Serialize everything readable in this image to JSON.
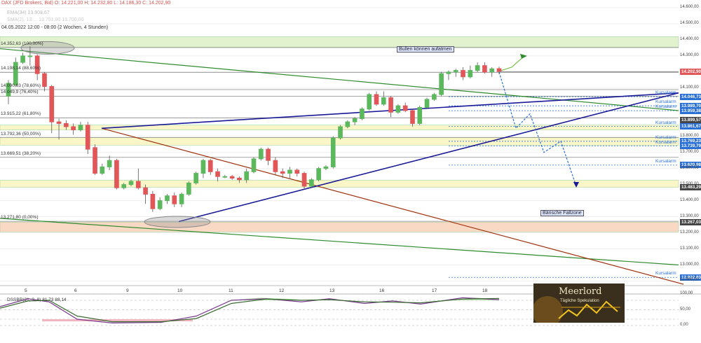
{
  "header": {
    "symbol_line": "DAX (JFD Brokers, Bid)  O: 14.221,00  H: 14.232,80  L: 14.186,30  C: 14.202,90",
    "ema_line": "EMA(34)  13.908,67",
    "faded_line": "SMA(2), 13.... 13.751,00  13.700,00",
    "date_line": "04.05.2022 12:00 - 08:00  (2 Wochen, 4 Stunden)",
    "logo_text": "Meerlord",
    "logo_sub": "Tägliche Spekulation"
  },
  "colors": {
    "up": "#5cb85c",
    "down": "#e15759",
    "blue_line": "#1a1a99",
    "green_line": "#2e8b2e",
    "brown_line": "#a0300c",
    "alarm": "#2a6fd6",
    "price_tag": "#e15759",
    "level_tag": "#444444",
    "fib_zone": "#fbf6c8",
    "top_zone": "#e2f2cf",
    "bottom_zone": "#f9d9c4"
  },
  "chart_data": {
    "type": "candlestick",
    "y_axis_ticks": [
      "14.600,00",
      "14.500,00",
      "14.400,00",
      "14.300,00",
      "14.200,00",
      "14.100,00",
      "13.800,00",
      "13.700,00",
      "13.600,00",
      "13.500,00",
      "13.400,00",
      "13.300,00",
      "13.200,00",
      "13.100,00",
      "13.000,00",
      "12.900,00"
    ],
    "x_axis_ticks": [
      "5",
      "6",
      "9",
      "10",
      "11",
      "12",
      "13",
      "16",
      "17",
      "18"
    ],
    "fib_levels": [
      {
        "price": 14352.63,
        "label": "14.352,63 (100,00%)"
      },
      {
        "price": 14198.14,
        "label": "14.198,14 (88,60%)"
      },
      {
        "price": 14090.63,
        "label": "14.090,63 (78,60%)"
      },
      {
        "price": 14049.9,
        "label": "14.049,9 (76,40%)"
      },
      {
        "price": 13915.22,
        "label": "13.915,22 (61,80%)"
      },
      {
        "price": 13792.36,
        "label": "13.792,36 (50,00%)"
      },
      {
        "price": 13669.51,
        "label": "13.669,51 (38,20%)"
      },
      {
        "price": 13271.8,
        "label": "13.271,80 (0,00%)"
      }
    ],
    "price_tags": [
      {
        "price": 14202.9,
        "label": "14.202,90",
        "kind": "current"
      },
      {
        "price": 13899.57,
        "label": "13.899,57",
        "kind": "level"
      },
      {
        "price": 13483.29,
        "label": "13.483,29",
        "kind": "level"
      },
      {
        "price": 13267.03,
        "label": "13.267,03",
        "kind": "level"
      }
    ],
    "alarms": [
      {
        "price": 14046.73,
        "label": "14.046,73"
      },
      {
        "price": 13989.7,
        "label": "13.989,70"
      },
      {
        "price": 13959.38,
        "label": "13.959,38"
      },
      {
        "price": 13861.67,
        "label": "13.861,67"
      },
      {
        "price": 13769.23,
        "label": "13.769,23"
      },
      {
        "price": 13739.79,
        "label": "13.739,79"
      },
      {
        "price": 13620.98,
        "label": "13.620,98"
      },
      {
        "price": 12922.83,
        "label": "12.922,83"
      }
    ],
    "alarm_text": "Kursalarm",
    "zones": [
      {
        "from": 14352,
        "to": 14420,
        "type": "top"
      },
      {
        "from": 13840,
        "to": 13870,
        "type": "fib"
      },
      {
        "from": 13745,
        "to": 13792,
        "type": "fib"
      },
      {
        "from": 13483,
        "to": 13527,
        "type": "fib"
      },
      {
        "from": 13205,
        "to": 13267,
        "type": "bottom"
      }
    ],
    "annotations": {
      "bull": "Bullen können aufatmen",
      "bear": "Bärische Fallzone"
    },
    "candles": [
      [
        14050,
        14130,
        14000,
        14150
      ],
      [
        14120,
        14260,
        14110,
        14290
      ],
      [
        14260,
        14300,
        14250,
        14320
      ],
      [
        14300,
        14300,
        14240,
        14360
      ],
      [
        14300,
        14190,
        14150,
        14310
      ],
      [
        14190,
        14110,
        14080,
        14200
      ],
      [
        14110,
        13890,
        13820,
        14120
      ],
      [
        13890,
        13880,
        13780,
        13910
      ],
      [
        13880,
        13860,
        13840,
        13900
      ],
      [
        13860,
        13840,
        13810,
        13880
      ],
      [
        13840,
        13870,
        13830,
        13890
      ],
      [
        13870,
        13720,
        13690,
        13890
      ],
      [
        13730,
        13570,
        13560,
        13750
      ],
      [
        13570,
        13610,
        13560,
        13630
      ],
      [
        13610,
        13650,
        13590,
        13680
      ],
      [
        13650,
        13480,
        13470,
        13660
      ],
      [
        13480,
        13500,
        13470,
        13510
      ],
      [
        13500,
        13520,
        13490,
        13530
      ],
      [
        13520,
        13480,
        13470,
        13600
      ],
      [
        13480,
        13440,
        13380,
        13500
      ],
      [
        13440,
        13350,
        13330,
        13460
      ],
      [
        13350,
        13400,
        13340,
        13420
      ],
      [
        13400,
        13430,
        13380,
        13440
      ],
      [
        13430,
        13380,
        13360,
        13450
      ],
      [
        13380,
        13440,
        13360,
        13450
      ],
      [
        13440,
        13510,
        13430,
        13520
      ],
      [
        13510,
        13570,
        13500,
        13580
      ],
      [
        13570,
        13650,
        13540,
        13660
      ],
      [
        13650,
        13580,
        13560,
        13660
      ],
      [
        13580,
        13550,
        13520,
        13600
      ],
      [
        13550,
        13550,
        13540,
        13560
      ],
      [
        13550,
        13540,
        13530,
        13560
      ],
      [
        13540,
        13530,
        13510,
        13550
      ],
      [
        13530,
        13580,
        13510,
        13600
      ],
      [
        13580,
        13660,
        13570,
        13670
      ],
      [
        13660,
        13720,
        13650,
        13730
      ],
      [
        13720,
        13650,
        13620,
        13730
      ],
      [
        13650,
        13580,
        13560,
        13670
      ],
      [
        13580,
        13570,
        13540,
        13600
      ],
      [
        13570,
        13590,
        13540,
        13610
      ],
      [
        13590,
        13570,
        13550,
        13600
      ],
      [
        13570,
        13490,
        13470,
        13580
      ],
      [
        13490,
        13530,
        13480,
        13540
      ],
      [
        13530,
        13600,
        13520,
        13610
      ],
      [
        13600,
        13610,
        13590,
        13620
      ],
      [
        13610,
        13790,
        13600,
        13800
      ],
      [
        13790,
        13860,
        13780,
        13870
      ],
      [
        13860,
        13890,
        13850,
        13900
      ],
      [
        13890,
        13910,
        13870,
        13920
      ],
      [
        13910,
        13970,
        13900,
        13980
      ],
      [
        13970,
        14060,
        13960,
        14070
      ],
      [
        14060,
        14000,
        13990,
        14080
      ],
      [
        14000,
        14040,
        13990,
        14080
      ],
      [
        14040,
        13950,
        13920,
        14050
      ],
      [
        13950,
        13990,
        13940,
        14000
      ],
      [
        13990,
        13960,
        13950,
        14010
      ],
      [
        13960,
        13880,
        13860,
        13970
      ],
      [
        13880,
        13980,
        13870,
        13990
      ],
      [
        13980,
        14030,
        13970,
        14040
      ],
      [
        14030,
        14060,
        14020,
        14070
      ],
      [
        14060,
        14190,
        14050,
        14200
      ],
      [
        14190,
        14200,
        14150,
        14210
      ],
      [
        14200,
        14210,
        14170,
        14220
      ],
      [
        14210,
        14170,
        14150,
        14230
      ],
      [
        14170,
        14210,
        14160,
        14240
      ],
      [
        14210,
        14240,
        14200,
        14260
      ],
      [
        14240,
        14200,
        14190,
        14260
      ],
      [
        14200,
        14220,
        14170,
        14230
      ],
      [
        14221,
        14203,
        14186,
        14233
      ]
    ]
  },
  "oscillator": {
    "label": "DSSBR(21, 3, 8)  81,73  88,14",
    "ticks": [
      "100,00",
      "50,00",
      "0,00"
    ]
  }
}
